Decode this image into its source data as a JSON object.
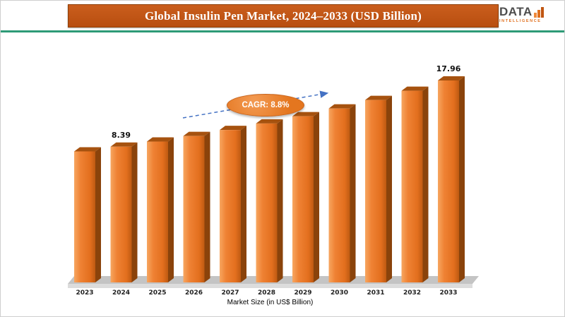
{
  "header": {
    "title": "Global Insulin Pen Market, 2024–2033 (USD Billion)",
    "banner_color": "#C0521A",
    "divider_color": "#2E9B77"
  },
  "logo": {
    "name": "DATA",
    "subtitle": "INTELLIGENCE",
    "accent_color": "#E0701F"
  },
  "chart_data": {
    "type": "bar",
    "title": "Global Insulin Pen Market, 2024–2033 (USD Billion)",
    "categories": [
      "2023",
      "2024",
      "2025",
      "2026",
      "2027",
      "2028",
      "2029",
      "2030",
      "2031",
      "2032",
      "2033"
    ],
    "values": [
      7.71,
      8.39,
      9.13,
      9.93,
      10.8,
      11.75,
      12.79,
      13.91,
      15.14,
      16.47,
      17.96
    ],
    "data_labels": [
      {
        "category": "2024",
        "value": "8.39"
      },
      {
        "category": "2033",
        "value": "17.96"
      }
    ],
    "cagr_label": "CAGR: 8.8%",
    "xlabel": "Market Size (in US$ Billion)",
    "ylabel": "",
    "bar_color": "#ED7D31",
    "arrow_color": "#4472C4",
    "legend": "none",
    "grid": false,
    "ylim_hint": "axis not shown; bars rendered with truncated baseline as in source"
  }
}
